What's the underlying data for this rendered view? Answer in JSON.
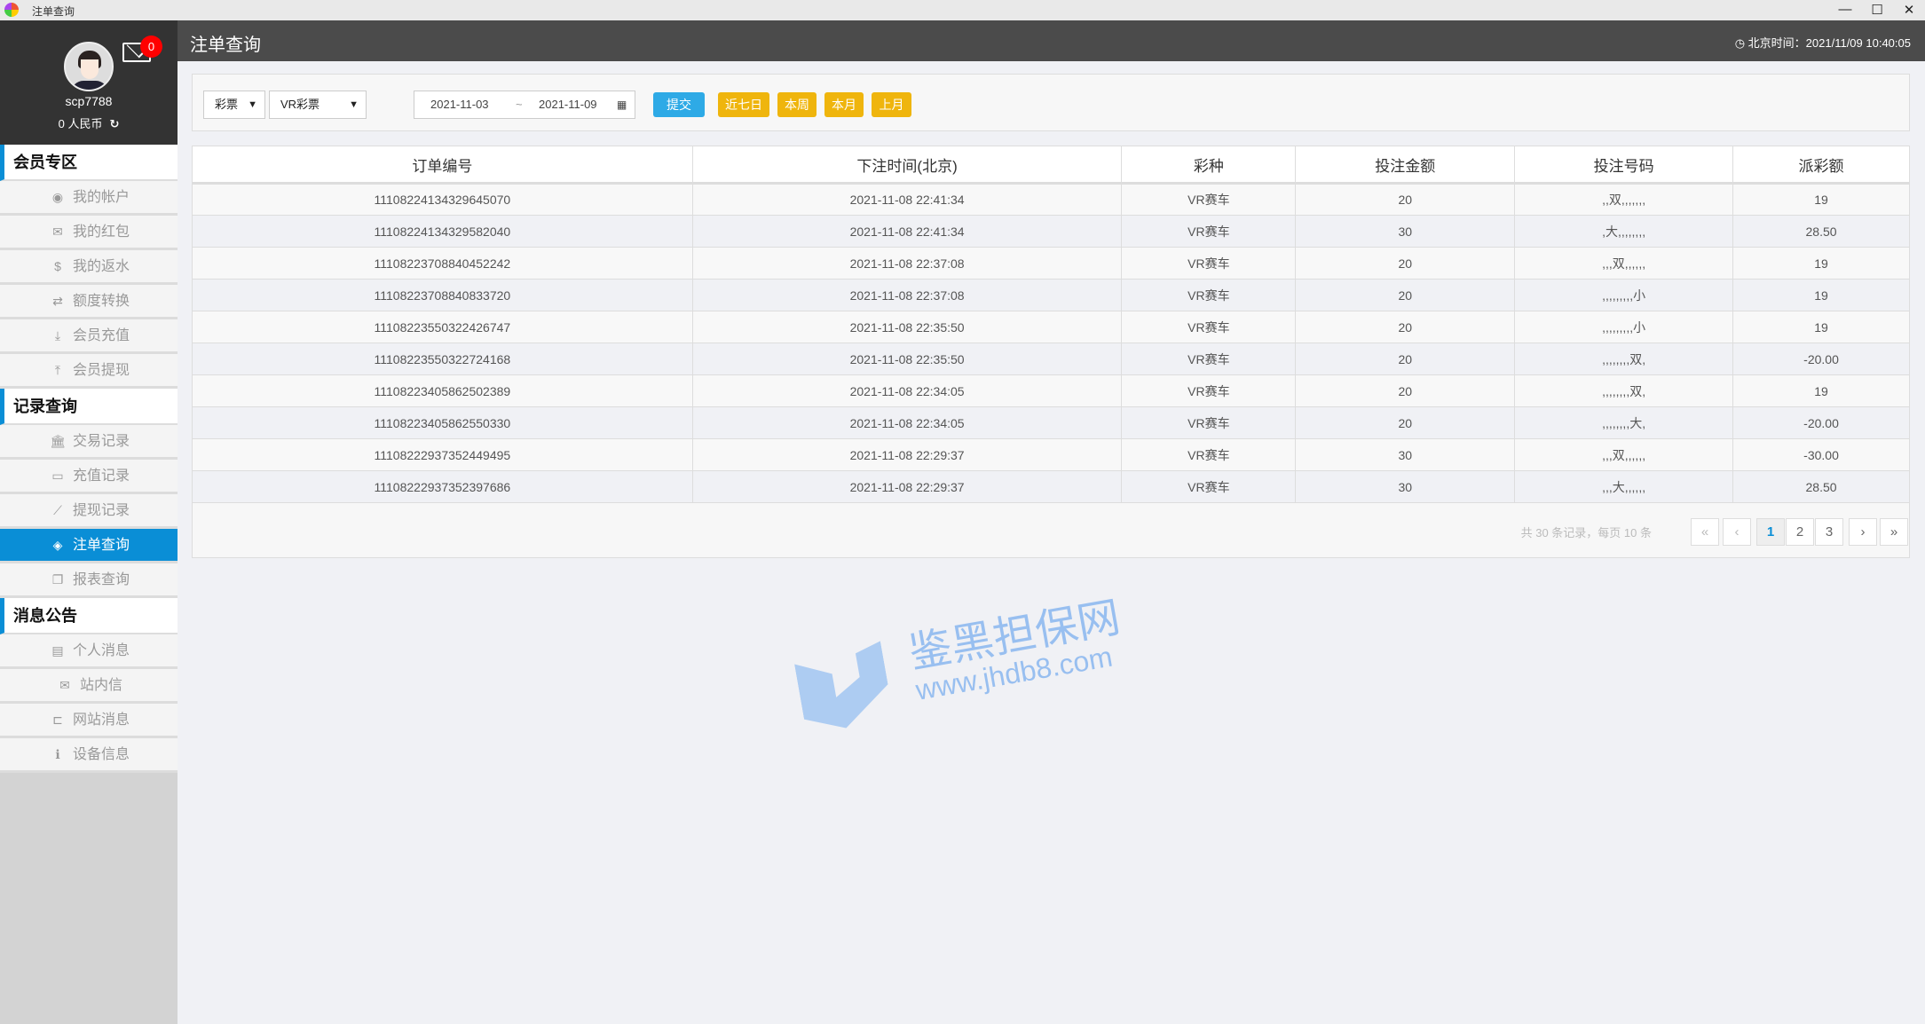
{
  "window": {
    "title": "注单查询",
    "controls": [
      "minimize",
      "maximize",
      "close"
    ]
  },
  "user": {
    "username": "scp7788",
    "balance": "0 人民币",
    "unread_messages": "0"
  },
  "sidebar": {
    "sections": [
      {
        "title": "会员专区",
        "items": [
          {
            "label": "我的帐户",
            "icon": "user-circle-icon"
          },
          {
            "label": "我的红包",
            "icon": "envelope-square-icon"
          },
          {
            "label": "我的返水",
            "icon": "dollar-icon"
          },
          {
            "label": "额度转换",
            "icon": "exchange-icon"
          },
          {
            "label": "会员充值",
            "icon": "download-icon"
          },
          {
            "label": "会员提现",
            "icon": "upload-icon"
          }
        ]
      },
      {
        "title": "记录查询",
        "items": [
          {
            "label": "交易记录",
            "icon": "bank-icon"
          },
          {
            "label": "充值记录",
            "icon": "credit-card-icon"
          },
          {
            "label": "提现记录",
            "icon": "line-chart-icon"
          },
          {
            "label": "注单查询",
            "icon": "ticket-icon",
            "active": true
          },
          {
            "label": "报表查询",
            "icon": "copy-icon"
          }
        ]
      },
      {
        "title": "消息公告",
        "items": [
          {
            "label": "个人消息",
            "icon": "id-card-icon"
          },
          {
            "label": "站内信",
            "icon": "envelope-icon"
          },
          {
            "label": "网站消息",
            "icon": "laptop-icon"
          },
          {
            "label": "设备信息",
            "icon": "info-icon"
          }
        ]
      }
    ]
  },
  "header": {
    "title": "注单查询",
    "clock_label": "北京时间：2021/11/09 10:40:05"
  },
  "filter": {
    "category": "彩票",
    "game": "VR彩票",
    "date_from": "2021-11-03",
    "date_sep": "~",
    "date_to": "2021-11-09",
    "submit": "提交",
    "quick": [
      "近七日",
      "本周",
      "本月",
      "上月"
    ]
  },
  "table": {
    "columns": [
      "订单编号",
      "下注时间(北京)",
      "彩种",
      "投注金额",
      "投注号码",
      "派彩额"
    ],
    "rows": [
      [
        "1110822413432964507​0",
        "2021-11-08 22:41:34",
        "VR赛车",
        "20",
        ",,双,,,,,,,",
        "19"
      ],
      [
        "11108224134329582040",
        "2021-11-08 22:41:34",
        "VR赛车",
        "30",
        ",大,,,,,,,,",
        "28.50"
      ],
      [
        "11108223708840452242",
        "2021-11-08 22:37:08",
        "VR赛车",
        "20",
        ",,,双,,,,,,",
        "19"
      ],
      [
        "11108223708840833720",
        "2021-11-08 22:37:08",
        "VR赛车",
        "20",
        ",,,,,,,,,小",
        "19"
      ],
      [
        "11108223550322426747",
        "2021-11-08 22:35:50",
        "VR赛车",
        "20",
        ",,,,,,,,,小",
        "19"
      ],
      [
        "11108223550322724168",
        "2021-11-08 22:35:50",
        "VR赛车",
        "20",
        ",,,,,,,,双,",
        "-20.00"
      ],
      [
        "11108223405862502389",
        "2021-11-08 22:34:05",
        "VR赛车",
        "20",
        ",,,,,,,,双,",
        "19"
      ],
      [
        "11108223405862550330",
        "2021-11-08 22:34:05",
        "VR赛车",
        "20",
        ",,,,,,,,大,",
        "-20.00"
      ],
      [
        "11108222937352449495",
        "2021-11-08 22:29:37",
        "VR赛车",
        "30",
        ",,,双,,,,,,",
        "-30.00"
      ],
      [
        "11108222937352397686",
        "2021-11-08 22:29:37",
        "VR赛车",
        "30",
        ",,,大,,,,,,",
        "28.50"
      ]
    ]
  },
  "pagination": {
    "info": "共 30 条记录，每页 10 条",
    "first": "«",
    "prev": "‹",
    "pages": [
      "1",
      "2",
      "3"
    ],
    "current": "1",
    "next": "›",
    "last": "»"
  },
  "watermark": {
    "name": "鉴黑担保网",
    "url": "www.jhdb8.com"
  },
  "colors": {
    "accent": "#0a8ed6",
    "submit": "#2eaae6",
    "quick": "#efb50d",
    "header": "#4b4b4b",
    "badge": "#ff0000"
  }
}
